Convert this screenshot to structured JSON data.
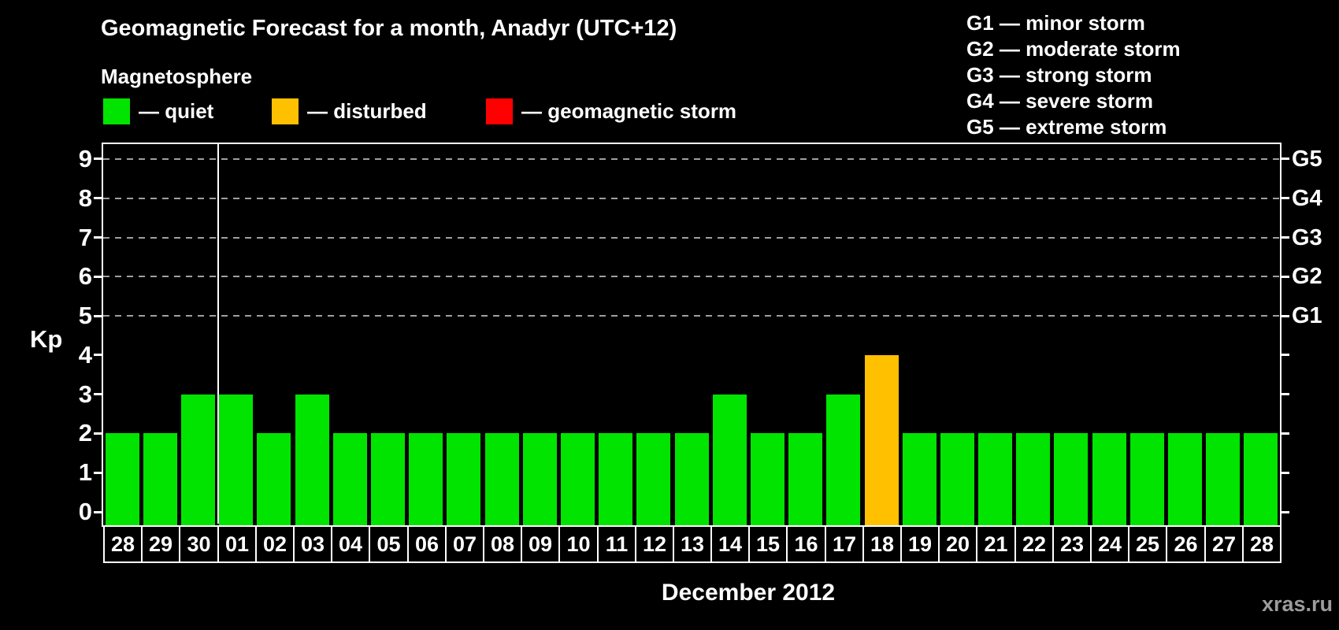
{
  "title": "Geomagnetic Forecast for a month, Anadyr (UTC+12)",
  "legend": {
    "title": "Magnetosphere",
    "items": [
      {
        "label": "— quiet",
        "status": "quiet",
        "color": "#00e400"
      },
      {
        "label": "— disturbed",
        "status": "disturbed",
        "color": "#ffc000"
      },
      {
        "label": "— geomagnetic storm",
        "status": "storm",
        "color": "#ff0000"
      }
    ]
  },
  "storm_scale": {
    "items": [
      "G1 — minor storm",
      "G2 — moderate storm",
      "G3 — strong storm",
      "G4 — severe storm",
      "G5 — extreme storm"
    ]
  },
  "watermark": "xras.ru",
  "chart_data": {
    "type": "bar",
    "title": "Geomagnetic Forecast for a month, Anadyr (UTC+12)",
    "subtitle": "Magnetosphere",
    "xlabel": "December 2012",
    "ylabel": "Kp",
    "ylim": [
      0,
      9.4
    ],
    "yticks": [
      0,
      1,
      2,
      3,
      4,
      5,
      6,
      7,
      8,
      9
    ],
    "grid": "dashed horizontal lines at Kp 5-9 only",
    "gridlines_at_kp": [
      5,
      6,
      7,
      8,
      9
    ],
    "right_axis": [
      {
        "label": "G1",
        "kp": 5
      },
      {
        "label": "G2",
        "kp": 6
      },
      {
        "label": "G3",
        "kp": 7
      },
      {
        "label": "G4",
        "kp": 8
      },
      {
        "label": "G5",
        "kp": 9
      }
    ],
    "month_separator_after_index": 2,
    "categories": [
      "28",
      "29",
      "30",
      "01",
      "02",
      "03",
      "04",
      "05",
      "06",
      "07",
      "08",
      "09",
      "10",
      "11",
      "12",
      "13",
      "14",
      "15",
      "16",
      "17",
      "18",
      "19",
      "20",
      "21",
      "22",
      "23",
      "24",
      "25",
      "26",
      "27",
      "28"
    ],
    "values": [
      2,
      2,
      3,
      3,
      2,
      3,
      2,
      2,
      2,
      2,
      2,
      2,
      2,
      2,
      2,
      2,
      3,
      2,
      2,
      3,
      4,
      2,
      2,
      2,
      2,
      2,
      2,
      2,
      2,
      2,
      2
    ],
    "statuses": [
      "quiet",
      "quiet",
      "quiet",
      "quiet",
      "quiet",
      "quiet",
      "quiet",
      "quiet",
      "quiet",
      "quiet",
      "quiet",
      "quiet",
      "quiet",
      "quiet",
      "quiet",
      "quiet",
      "quiet",
      "quiet",
      "quiet",
      "quiet",
      "disturbed",
      "quiet",
      "quiet",
      "quiet",
      "quiet",
      "quiet",
      "quiet",
      "quiet",
      "quiet",
      "quiet",
      "quiet"
    ]
  }
}
